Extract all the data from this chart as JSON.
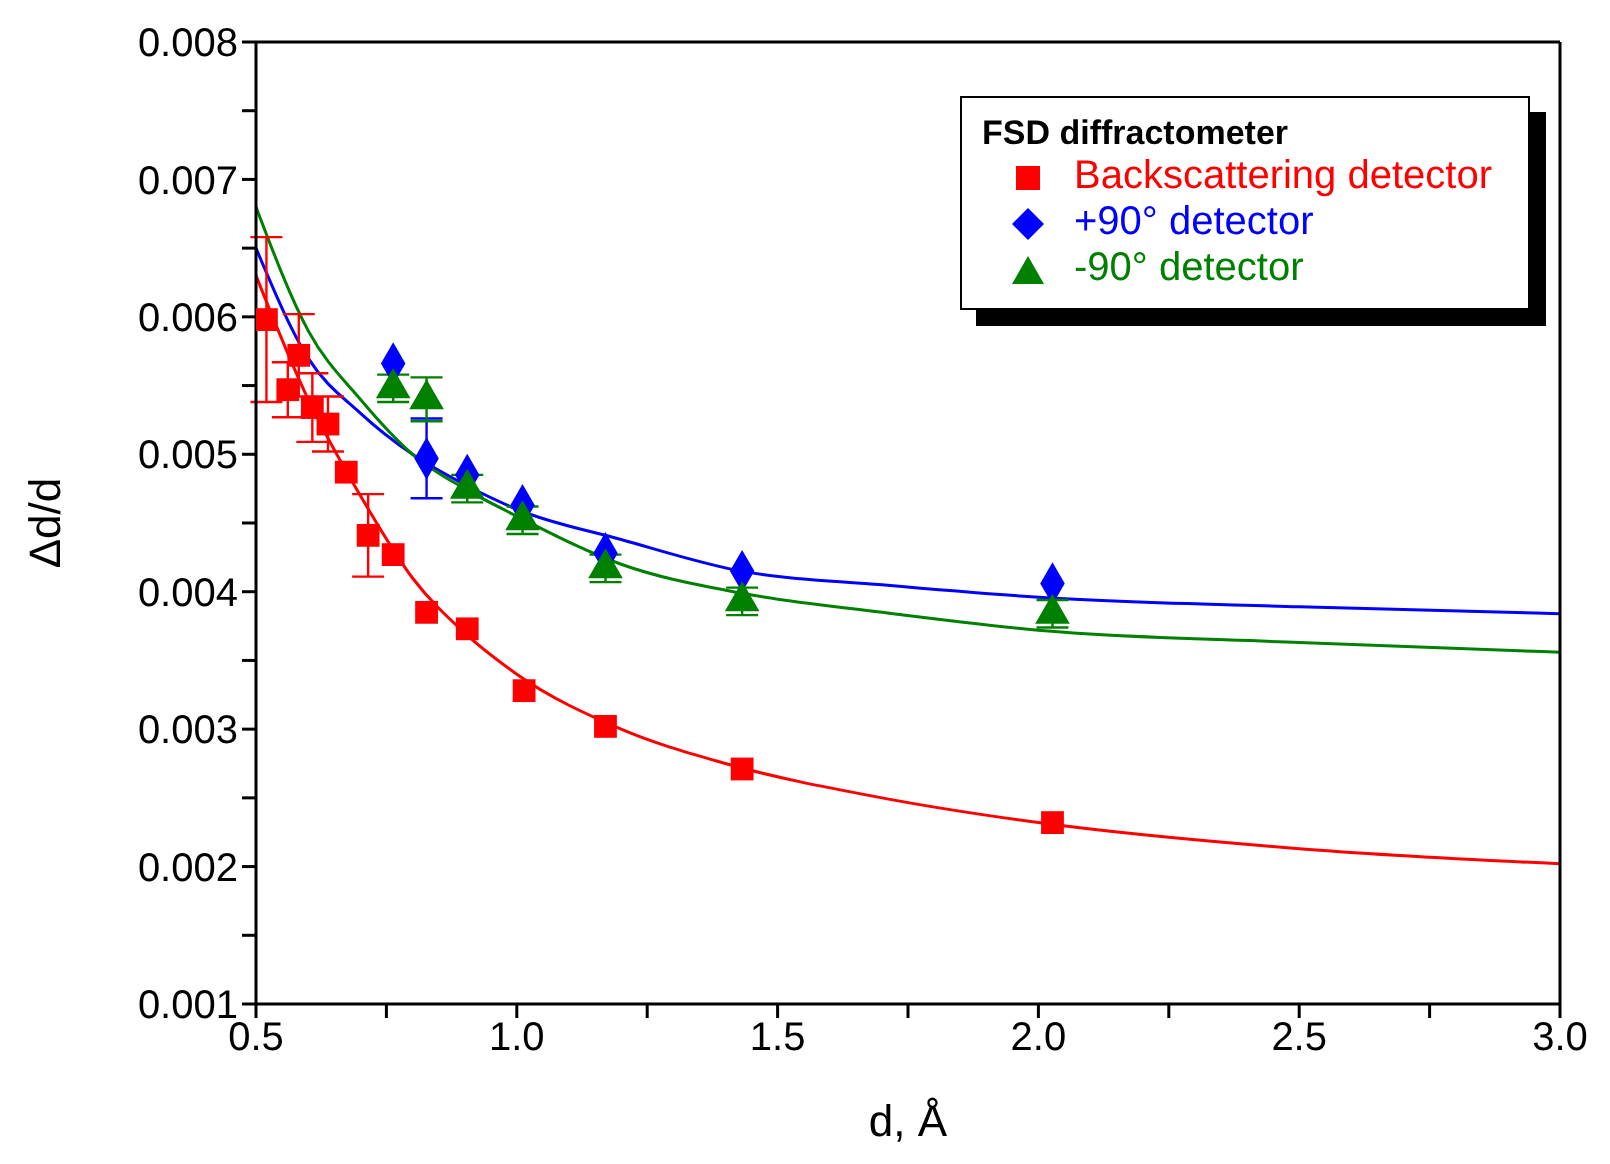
{
  "chart_data": {
    "type": "scatter",
    "xlabel": "d, Å",
    "ylabel": "Δd/d",
    "legend_title": "FSD diffractometer",
    "legend": "top right",
    "grid": false,
    "xlim": [
      0.5,
      3.0
    ],
    "xticks": [
      {
        "value": 0.5,
        "label": "0.5"
      },
      {
        "value": 0.75,
        "label": null
      },
      {
        "value": 1.0,
        "label": "1.0"
      },
      {
        "value": 1.25,
        "label": null
      },
      {
        "value": 1.5,
        "label": "1.5"
      },
      {
        "value": 1.75,
        "label": null
      },
      {
        "value": 2.0,
        "label": "2.0"
      },
      {
        "value": 2.25,
        "label": null
      },
      {
        "value": 2.5,
        "label": "2.5"
      },
      {
        "value": 2.75,
        "label": null
      },
      {
        "value": 3.0,
        "label": "3.0"
      }
    ],
    "ylim": [
      0.001,
      0.008
    ],
    "yticks": [
      0.001,
      {
        "value": 0.0015,
        "label": null
      },
      0.002,
      {
        "value": 0.0025,
        "label": null
      },
      0.003,
      {
        "value": 0.0035,
        "label": null
      },
      0.004,
      {
        "value": 0.0045,
        "label": null
      },
      0.005,
      {
        "value": 0.0055,
        "label": null
      },
      0.006,
      {
        "value": 0.0065,
        "label": null
      },
      0.007,
      {
        "value": 0.0075,
        "label": null
      },
      0.008
    ],
    "series": [
      {
        "name": "Backscattering detector",
        "marker": "square",
        "color": "#ff0000",
        "x": [
          0.52,
          0.561,
          0.582,
          0.608,
          0.638,
          0.673,
          0.715,
          0.763,
          0.827,
          0.905,
          1.014,
          1.17,
          1.432,
          2.027
        ],
        "values": [
          0.00598,
          0.00547,
          0.00572,
          0.00534,
          0.00522,
          0.00487,
          0.00441,
          0.00427,
          0.00385,
          0.00373,
          0.00328,
          0.00302,
          0.00271,
          0.00232
        ],
        "errors": [
          0.0006,
          0.0002,
          0.0003,
          0.00025,
          0.0002,
          null,
          0.0003,
          null,
          null,
          null,
          null,
          null,
          null,
          null
        ]
      },
      {
        "name": "+90° detector",
        "marker": "diamond",
        "color": "#0000ff",
        "x": [
          0.763,
          0.827,
          0.905,
          1.011,
          1.17,
          1.432,
          2.027
        ],
        "values": [
          0.00566,
          0.00497,
          0.00485,
          0.00463,
          0.00428,
          0.00415,
          0.00406
        ],
        "errors": [
          null,
          0.00029,
          null,
          null,
          null,
          null,
          null
        ]
      },
      {
        "name": "-90° detector",
        "marker": "triangle",
        "color": "#008000",
        "x": [
          0.763,
          0.827,
          0.905,
          1.011,
          1.17,
          1.432,
          2.027
        ],
        "values": [
          0.00548,
          0.0054,
          0.00475,
          0.00452,
          0.00417,
          0.00393,
          0.00384
        ],
        "errors": [
          0.0001,
          0.00016,
          0.0001,
          0.0001,
          0.0001,
          0.0001,
          0.0001
        ]
      },
      {
        "type": "line",
        "marker": "none",
        "color": "#ff0000",
        "x": [
          0.5,
          0.6,
          0.7,
          0.8,
          0.9,
          1.0,
          1.2,
          1.4,
          1.7,
          2.0,
          2.5,
          3.0
        ],
        "values": [
          0.0063,
          0.0054,
          0.0047,
          0.0041,
          0.0037,
          0.0034,
          0.003,
          0.00275,
          0.0025,
          0.00232,
          0.00213,
          0.00202
        ]
      },
      {
        "type": "line",
        "marker": "none",
        "color": "#0000ff",
        "x": [
          0.5,
          0.6,
          0.7,
          0.8,
          0.9,
          1.0,
          1.2,
          1.43,
          1.7,
          2.0,
          2.5,
          3.0
        ],
        "values": [
          0.0065,
          0.0057,
          0.0053,
          0.005,
          0.00478,
          0.0046,
          0.00438,
          0.00415,
          0.00405,
          0.00396,
          0.00389,
          0.00384
        ]
      },
      {
        "type": "line",
        "marker": "none",
        "color": "#008000",
        "x": [
          0.5,
          0.6,
          0.7,
          0.8,
          0.9,
          1.0,
          1.2,
          1.43,
          1.7,
          2.0,
          2.5,
          3.0
        ],
        "values": [
          0.0068,
          0.0059,
          0.0054,
          0.005,
          0.00475,
          0.00455,
          0.0042,
          0.00399,
          0.00385,
          0.00372,
          0.00363,
          0.00356
        ]
      }
    ]
  }
}
